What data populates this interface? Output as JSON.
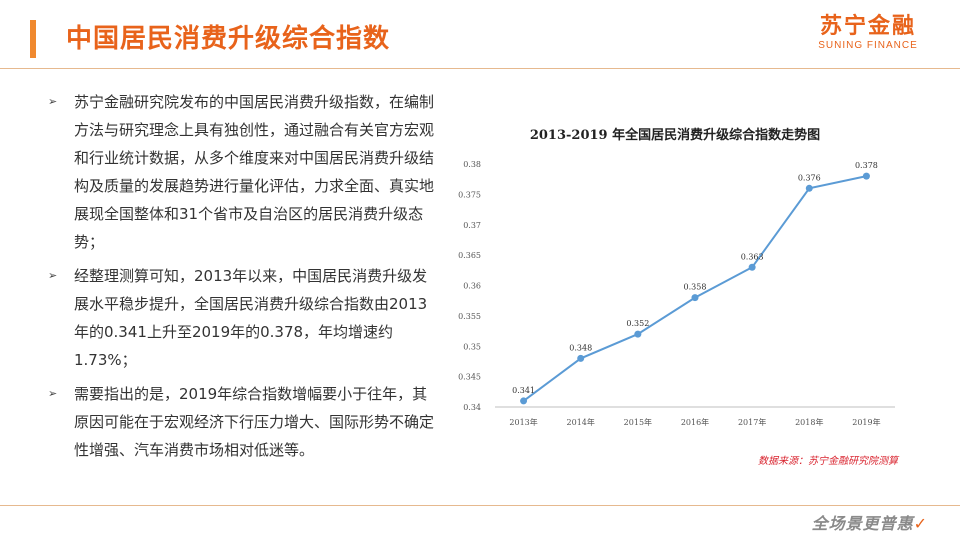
{
  "header": {
    "title": "中国居民消费升级综合指数",
    "logo_cn": "苏宁金融",
    "logo_en": "SUNING FINANCE"
  },
  "bullets": [
    "苏宁金融研究院发布的中国居民消费升级指数，在编制方法与研究理念上具有独创性，通过融合有关官方宏观和行业统计数据，从多个维度来对中国居民消费升级结构及质量的发展趋势进行量化评估，力求全面、真实地展现全国整体和31个省市及自治区的居民消费升级态势；",
    "经整理测算可知，2013年以来，中国居民消费升级发展水平稳步提升，全国居民消费升级综合指数由2013年的0.341上升至2019年的0.378，年均增速约1.73%；",
    "需要指出的是，2019年综合指数增幅要小于往年，其原因可能在于宏观经济下行压力增大、国际形势不确定性增强、汽车消费市场相对低迷等。"
  ],
  "chart_source": "数据来源：苏宁金融研究院测算",
  "footer": {
    "slogan": "全场景更普惠"
  },
  "colors": {
    "accent": "#e8631b",
    "line": "#5b9bd5",
    "source": "#d9232e"
  },
  "chart_data": {
    "type": "line",
    "title": "2013-2019 年全国居民消费升级综合指数走势图",
    "categories": [
      "2013年",
      "2014年",
      "2015年",
      "2016年",
      "2017年",
      "2018年",
      "2019年"
    ],
    "series": [
      {
        "values": [
          0.341,
          0.348,
          0.352,
          0.358,
          0.363,
          0.376,
          0.378
        ]
      }
    ],
    "data_labels": [
      "0.341",
      "0.348",
      "0.352",
      "0.358",
      "0.363",
      "0.376",
      "0.378"
    ],
    "yticks": [
      "0.34",
      "0.345",
      "0.35",
      "0.355",
      "0.36",
      "0.365",
      "0.37",
      "0.375",
      "0.38"
    ],
    "ylim": [
      0.34,
      0.38
    ],
    "grid": false,
    "legend": "none"
  }
}
